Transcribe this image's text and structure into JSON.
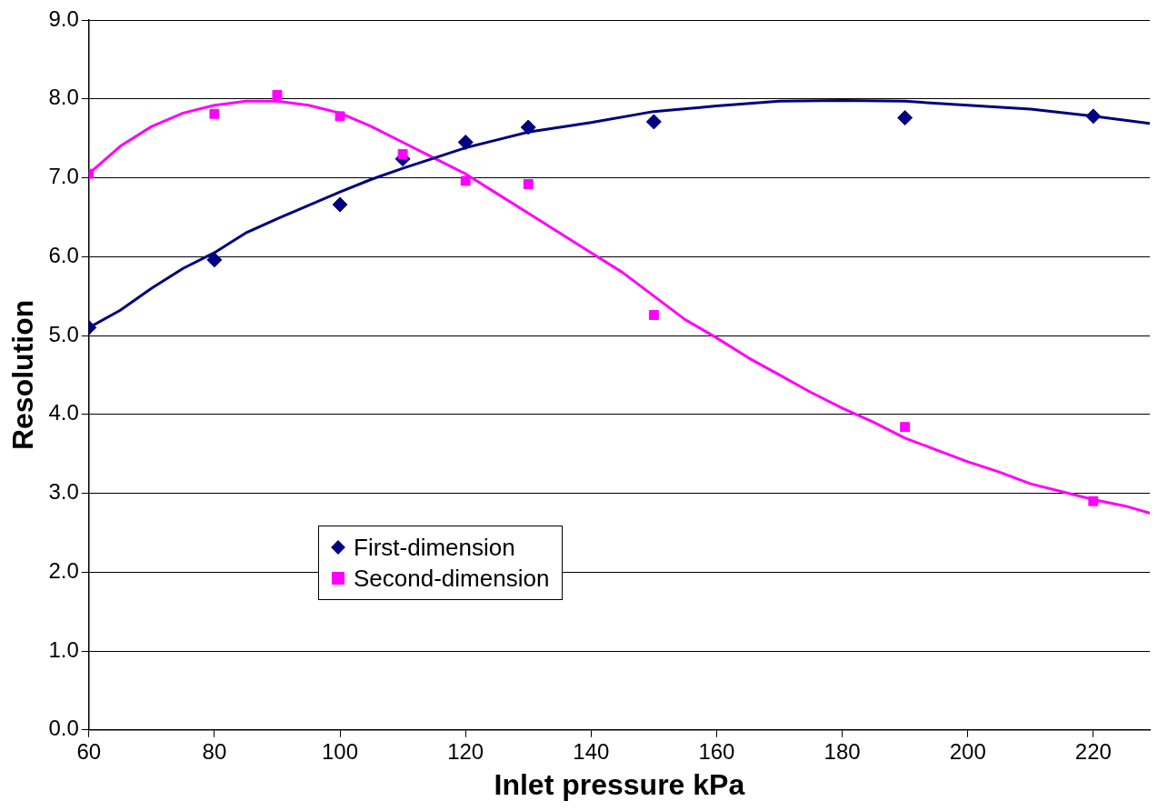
{
  "chart_data": {
    "type": "scatter",
    "xlabel": "Inlet pressure kPa",
    "ylabel": "Resolution",
    "xlim": [
      60,
      229
    ],
    "xticks": [
      60,
      80,
      100,
      120,
      140,
      160,
      180,
      200,
      220
    ],
    "ylim": [
      0,
      9
    ],
    "yticks": [
      {
        "value": 0,
        "label": "0.0"
      },
      {
        "value": 1,
        "label": "1.0"
      },
      {
        "value": 2,
        "label": "2.0"
      },
      {
        "value": 3,
        "label": "3.0"
      },
      {
        "value": 4,
        "label": "4.0"
      },
      {
        "value": 5,
        "label": "5.0"
      },
      {
        "value": 6,
        "label": "6.0"
      },
      {
        "value": 7,
        "label": "7.0"
      },
      {
        "value": 8,
        "label": "8.0"
      },
      {
        "value": 9,
        "label": "9.0"
      }
    ],
    "grid": "y",
    "legend": "bottom left",
    "series": [
      {
        "name": "First-dimension",
        "marker": "diamond",
        "color": "#000080",
        "x": [
          60,
          80,
          100,
          110,
          120,
          130,
          150,
          190,
          220
        ],
        "values": [
          5.1,
          5.96,
          6.66,
          7.24,
          7.45,
          7.64,
          7.71,
          7.76,
          7.78
        ]
      },
      {
        "name": "Second-dimension",
        "marker": "square",
        "color": "#ff00ff",
        "x": [
          60,
          80,
          90,
          100,
          110,
          120,
          130,
          150,
          190,
          220
        ],
        "values": [
          7.05,
          7.81,
          8.05,
          7.78,
          7.3,
          6.96,
          6.92,
          5.26,
          3.84,
          2.9
        ]
      },
      {
        "type": "line",
        "marker": "none",
        "color": "#000080",
        "x": [
          60,
          65,
          70,
          75,
          80,
          85,
          90,
          95,
          100,
          105,
          110,
          115,
          120,
          125,
          130,
          140,
          150,
          160,
          170,
          180,
          190,
          200,
          210,
          220,
          229
        ],
        "values": [
          5.1,
          5.32,
          5.6,
          5.85,
          6.05,
          6.3,
          6.48,
          6.65,
          6.82,
          6.98,
          7.12,
          7.25,
          7.38,
          7.48,
          7.58,
          7.7,
          7.84,
          7.91,
          7.97,
          7.98,
          7.97,
          7.92,
          7.87,
          7.78,
          7.69
        ]
      },
      {
        "type": "line",
        "marker": "none",
        "color": "#ff00ff",
        "x": [
          60,
          65,
          70,
          75,
          80,
          85,
          90,
          95,
          100,
          105,
          110,
          115,
          120,
          125,
          130,
          135,
          140,
          145,
          150,
          155,
          160,
          165,
          170,
          175,
          180,
          185,
          190,
          195,
          200,
          205,
          210,
          215,
          220,
          225,
          229
        ],
        "values": [
          7.05,
          7.4,
          7.65,
          7.82,
          7.92,
          7.97,
          7.97,
          7.92,
          7.82,
          7.65,
          7.45,
          7.25,
          7.05,
          6.8,
          6.55,
          6.3,
          6.05,
          5.8,
          5.5,
          5.2,
          4.97,
          4.72,
          4.5,
          4.28,
          4.08,
          3.9,
          3.7,
          3.55,
          3.4,
          3.27,
          3.12,
          3.02,
          2.92,
          2.84,
          2.75
        ]
      }
    ]
  }
}
